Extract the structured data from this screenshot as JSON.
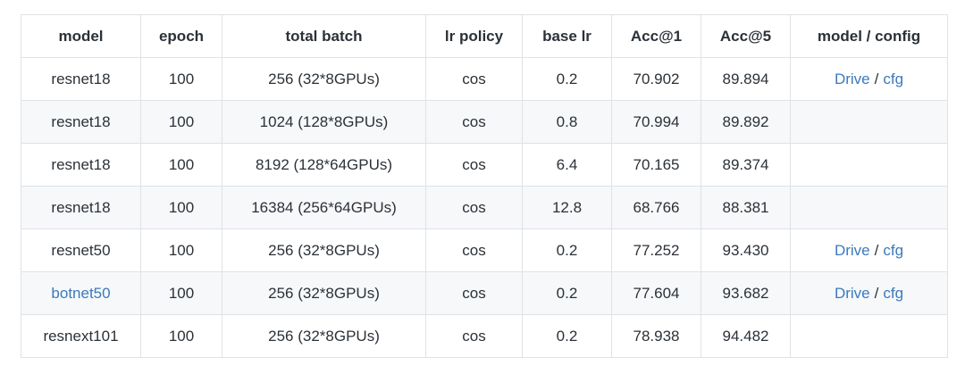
{
  "table": {
    "columns": [
      {
        "key": "model",
        "label": "model"
      },
      {
        "key": "epoch",
        "label": "epoch"
      },
      {
        "key": "total_batch",
        "label": "total batch"
      },
      {
        "key": "lr_policy",
        "label": "lr policy"
      },
      {
        "key": "base_lr",
        "label": "base lr"
      },
      {
        "key": "acc_1",
        "label": "Acc@1"
      },
      {
        "key": "acc_5",
        "label": "Acc@5"
      },
      {
        "key": "config",
        "label": "model / config"
      }
    ],
    "rows": [
      {
        "model": "resnet18",
        "model_link": false,
        "epoch": "100",
        "total_batch": "256 (32*8GPUs)",
        "lr_policy": "cos",
        "base_lr": "0.2",
        "acc_1": "70.902",
        "acc_5": "89.894",
        "config": {
          "drive_label": "Drive",
          "separator": "/",
          "cfg_label": "cfg"
        }
      },
      {
        "model": "resnet18",
        "model_link": false,
        "epoch": "100",
        "total_batch": "1024 (128*8GPUs)",
        "lr_policy": "cos",
        "base_lr": "0.8",
        "acc_1": "70.994",
        "acc_5": "89.892",
        "config": null
      },
      {
        "model": "resnet18",
        "model_link": false,
        "epoch": "100",
        "total_batch": "8192 (128*64GPUs)",
        "lr_policy": "cos",
        "base_lr": "6.4",
        "acc_1": "70.165",
        "acc_5": "89.374",
        "config": null
      },
      {
        "model": "resnet18",
        "model_link": false,
        "epoch": "100",
        "total_batch": "16384 (256*64GPUs)",
        "lr_policy": "cos",
        "base_lr": "12.8",
        "acc_1": "68.766",
        "acc_5": "88.381",
        "config": null
      },
      {
        "model": "resnet50",
        "model_link": false,
        "epoch": "100",
        "total_batch": "256 (32*8GPUs)",
        "lr_policy": "cos",
        "base_lr": "0.2",
        "acc_1": "77.252",
        "acc_5": "93.430",
        "config": {
          "drive_label": "Drive",
          "separator": "/",
          "cfg_label": "cfg"
        }
      },
      {
        "model": "botnet50",
        "model_link": true,
        "epoch": "100",
        "total_batch": "256 (32*8GPUs)",
        "lr_policy": "cos",
        "base_lr": "0.2",
        "acc_1": "77.604",
        "acc_5": "93.682",
        "config": {
          "drive_label": "Drive",
          "separator": "/",
          "cfg_label": "cfg"
        }
      },
      {
        "model": "resnext101",
        "model_link": false,
        "epoch": "100",
        "total_batch": "256 (32*8GPUs)",
        "lr_policy": "cos",
        "base_lr": "0.2",
        "acc_1": "78.938",
        "acc_5": "94.482",
        "config": null
      }
    ]
  },
  "colors": {
    "link": "#3c79bd",
    "row_alt_background": "#f6f8fa",
    "border": "#dfe2e6",
    "text": "#2b3137"
  }
}
